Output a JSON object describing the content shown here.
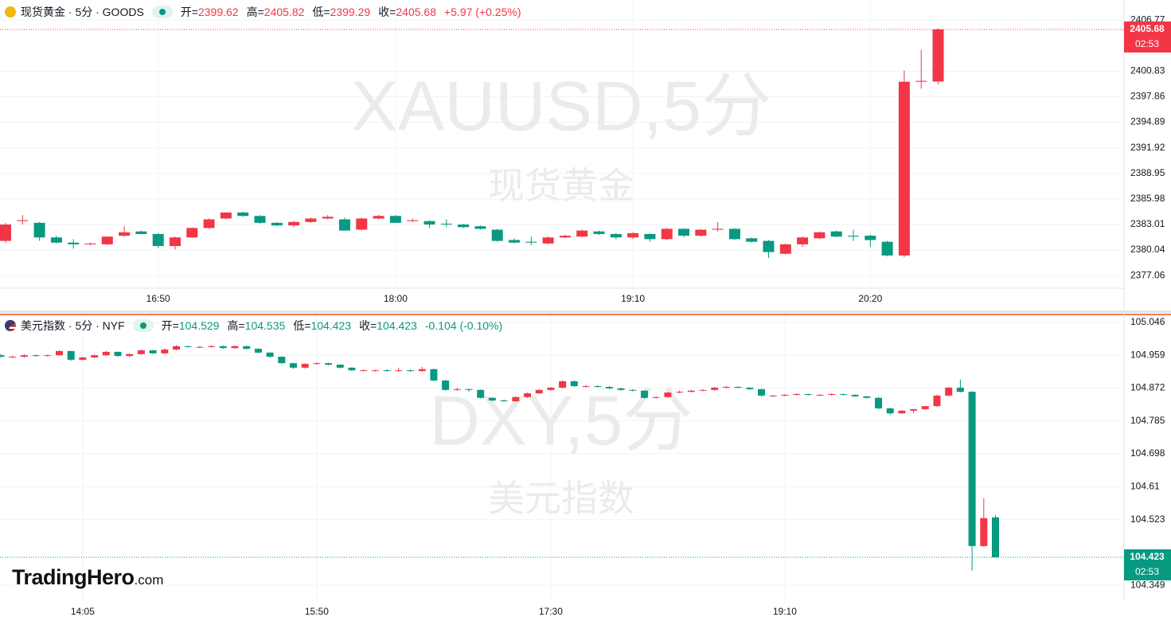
{
  "chart_data": [
    {
      "type": "candlestick",
      "title": "现货黄金 · 5分 · GOODS",
      "header_labels": [
        "开=",
        "高=",
        "低=",
        "收="
      ],
      "change": "+5.97 (+0.25%)",
      "watermark": "XAUUSD,5分",
      "watermark_sub": "现货黄金",
      "countdown": "02:53",
      "up_color": "#f23645",
      "down_color": "#089981",
      "ylim": [
        2375.6,
        2409.1
      ],
      "yticks": [
        2377.06,
        2380.04,
        2383.01,
        2385.98,
        2388.95,
        2391.92,
        2394.89,
        2397.86,
        2400.83,
        2406.77
      ],
      "categories": [
        null,
        null,
        null,
        null,
        null,
        null,
        null,
        null,
        null,
        "16:50",
        null,
        null,
        null,
        null,
        null,
        null,
        null,
        null,
        null,
        null,
        null,
        null,
        null,
        "18:00",
        null,
        null,
        null,
        null,
        null,
        null,
        null,
        null,
        null,
        null,
        null,
        null,
        null,
        "19:10",
        null,
        null,
        null,
        null,
        null,
        null,
        null,
        null,
        null,
        null,
        null,
        null,
        null,
        "20:20",
        null,
        null,
        null,
        null
      ],
      "ohlc": [
        [
          2381.1,
          2383.2,
          2380.9,
          2383.0
        ],
        [
          2383.4,
          2384.1,
          2383.0,
          2383.5
        ],
        [
          2383.2,
          2383.3,
          2381.1,
          2381.5
        ],
        [
          2381.5,
          2381.7,
          2380.8,
          2380.9
        ],
        [
          2380.9,
          2381.3,
          2380.2,
          2380.7
        ],
        [
          2380.7,
          2380.9,
          2380.6,
          2380.8
        ],
        [
          2380.7,
          2381.6,
          2380.6,
          2381.6
        ],
        [
          2381.7,
          2382.8,
          2381.6,
          2382.1
        ],
        [
          2382.2,
          2382.3,
          2381.9,
          2381.9
        ],
        [
          2381.9,
          2382.0,
          2380.3,
          2380.5
        ],
        [
          2380.5,
          2381.6,
          2380.1,
          2381.5
        ],
        [
          2381.5,
          2382.7,
          2381.4,
          2382.6
        ],
        [
          2382.6,
          2383.7,
          2382.5,
          2383.6
        ],
        [
          2383.7,
          2384.4,
          2383.6,
          2384.4
        ],
        [
          2384.4,
          2384.5,
          2383.9,
          2384.0
        ],
        [
          2384.0,
          2384.1,
          2383.1,
          2383.2
        ],
        [
          2383.2,
          2383.3,
          2382.8,
          2382.9
        ],
        [
          2382.9,
          2383.4,
          2382.7,
          2383.3
        ],
        [
          2383.3,
          2383.8,
          2383.2,
          2383.7
        ],
        [
          2383.7,
          2384.1,
          2383.6,
          2383.9
        ],
        [
          2383.6,
          2383.8,
          2382.3,
          2382.3
        ],
        [
          2382.4,
          2383.8,
          2382.3,
          2383.7
        ],
        [
          2383.7,
          2384.1,
          2383.6,
          2384.0
        ],
        [
          2384.0,
          2384.1,
          2383.2,
          2383.2
        ],
        [
          2383.4,
          2383.7,
          2383.3,
          2383.5
        ],
        [
          2383.4,
          2383.5,
          2382.6,
          2383.0
        ],
        [
          2383.1,
          2383.6,
          2382.7,
          2383.0
        ],
        [
          2383.0,
          2383.1,
          2382.6,
          2382.7
        ],
        [
          2382.8,
          2382.9,
          2382.4,
          2382.5
        ],
        [
          2382.4,
          2382.5,
          2381.0,
          2381.1
        ],
        [
          2381.2,
          2381.4,
          2380.8,
          2380.9
        ],
        [
          2381.0,
          2381.6,
          2380.6,
          2380.9
        ],
        [
          2380.8,
          2381.6,
          2380.7,
          2381.5
        ],
        [
          2381.5,
          2381.8,
          2381.4,
          2381.7
        ],
        [
          2381.6,
          2382.4,
          2381.5,
          2382.3
        ],
        [
          2382.2,
          2382.3,
          2381.8,
          2381.9
        ],
        [
          2381.9,
          2382.0,
          2381.3,
          2381.5
        ],
        [
          2381.5,
          2382.1,
          2381.3,
          2382.0
        ],
        [
          2381.9,
          2382.0,
          2381.0,
          2381.3
        ],
        [
          2381.3,
          2382.6,
          2381.2,
          2382.5
        ],
        [
          2382.5,
          2382.6,
          2381.5,
          2381.7
        ],
        [
          2381.7,
          2382.5,
          2381.6,
          2382.4
        ],
        [
          2382.4,
          2383.3,
          2382.2,
          2382.5
        ],
        [
          2382.5,
          2382.6,
          2381.2,
          2381.3
        ],
        [
          2381.4,
          2381.5,
          2380.9,
          2381.0
        ],
        [
          2381.1,
          2381.2,
          2379.1,
          2379.8
        ],
        [
          2379.6,
          2380.8,
          2379.5,
          2380.7
        ],
        [
          2380.7,
          2381.6,
          2380.4,
          2381.5
        ],
        [
          2381.4,
          2382.2,
          2381.3,
          2382.1
        ],
        [
          2382.2,
          2382.3,
          2381.5,
          2381.6
        ],
        [
          2381.7,
          2382.4,
          2381.1,
          2381.6
        ],
        [
          2381.7,
          2381.8,
          2380.4,
          2381.2
        ],
        [
          2381.0,
          2381.1,
          2379.3,
          2379.4
        ],
        [
          2379.4,
          2400.9,
          2379.2,
          2399.6
        ],
        [
          2399.6,
          2403.3,
          2398.8,
          2399.7
        ],
        [
          2399.62,
          2405.82,
          2399.29,
          2405.68
        ]
      ]
    },
    {
      "type": "candlestick",
      "title": "美元指数 · 5分 · NYF",
      "header_labels": [
        "开=",
        "高=",
        "低=",
        "收="
      ],
      "change": "-0.104 (-0.10%)",
      "watermark": "DXY,5分",
      "watermark_sub": "美元指数",
      "countdown": "02:53",
      "up_color": "#f23645",
      "down_color": "#089981",
      "ylim": [
        104.307,
        105.065
      ],
      "yticks": [
        104.349,
        104.523,
        104.61,
        104.698,
        104.785,
        104.872,
        104.959,
        105.046
      ],
      "categories": [
        null,
        null,
        null,
        null,
        null,
        null,
        null,
        "14:05",
        null,
        null,
        null,
        null,
        null,
        null,
        null,
        null,
        null,
        null,
        null,
        null,
        null,
        null,
        null,
        null,
        null,
        null,
        null,
        "15:50",
        null,
        null,
        null,
        null,
        null,
        null,
        null,
        null,
        null,
        null,
        null,
        null,
        null,
        null,
        null,
        null,
        null,
        null,
        null,
        "17:30",
        null,
        null,
        null,
        null,
        null,
        null,
        null,
        null,
        null,
        null,
        null,
        null,
        null,
        null,
        null,
        null,
        null,
        null,
        null,
        "19:10",
        null,
        null,
        null,
        null,
        null,
        null,
        null,
        null,
        null,
        null,
        null,
        null,
        null,
        null,
        null,
        null,
        null,
        null
      ],
      "ohlc": [
        [
          104.959,
          104.962,
          104.953,
          104.955
        ],
        [
          104.955,
          104.958,
          104.952,
          104.955
        ],
        [
          104.955,
          104.962,
          104.953,
          104.959
        ],
        [
          104.959,
          104.961,
          104.955,
          104.957
        ],
        [
          104.957,
          104.961,
          104.955,
          104.959
        ],
        [
          104.959,
          104.972,
          104.958,
          104.97
        ],
        [
          104.97,
          104.971,
          104.944,
          104.947
        ],
        [
          104.947,
          104.955,
          104.945,
          104.953
        ],
        [
          104.953,
          104.961,
          104.951,
          104.959
        ],
        [
          104.959,
          104.97,
          104.957,
          104.968
        ],
        [
          104.968,
          104.969,
          104.955,
          104.957
        ],
        [
          104.957,
          104.964,
          104.954,
          104.962
        ],
        [
          104.962,
          104.974,
          104.96,
          104.972
        ],
        [
          104.972,
          104.973,
          104.962,
          104.964
        ],
        [
          104.964,
          104.977,
          104.962,
          104.974
        ],
        [
          104.974,
          104.986,
          104.972,
          104.983
        ],
        [
          104.983,
          104.985,
          104.979,
          104.981
        ],
        [
          104.981,
          104.984,
          104.978,
          104.981
        ],
        [
          104.981,
          104.986,
          104.979,
          104.983
        ],
        [
          104.983,
          104.985,
          104.976,
          104.978
        ],
        [
          104.978,
          104.985,
          104.976,
          104.983
        ],
        [
          104.983,
          104.984,
          104.974,
          104.976
        ],
        [
          104.976,
          104.977,
          104.964,
          104.966
        ],
        [
          104.966,
          104.967,
          104.953,
          104.955
        ],
        [
          104.955,
          104.956,
          104.936,
          104.938
        ],
        [
          104.938,
          104.939,
          104.923,
          104.926
        ],
        [
          104.926,
          104.938,
          104.924,
          104.936
        ],
        [
          104.936,
          104.94,
          104.934,
          104.938
        ],
        [
          104.938,
          104.939,
          104.932,
          104.934
        ],
        [
          104.934,
          104.935,
          104.924,
          104.926
        ],
        [
          104.926,
          104.927,
          104.917,
          104.919
        ],
        [
          104.919,
          104.922,
          104.917,
          104.919
        ],
        [
          104.919,
          104.921,
          104.916,
          104.919
        ],
        [
          104.919,
          104.922,
          104.915,
          104.917
        ],
        [
          104.917,
          104.926,
          104.915,
          104.919
        ],
        [
          104.919,
          104.921,
          104.915,
          104.917
        ],
        [
          104.917,
          104.928,
          104.915,
          104.922
        ],
        [
          104.922,
          104.924,
          104.89,
          104.892
        ],
        [
          104.892,
          104.894,
          104.865,
          104.867
        ],
        [
          104.867,
          104.873,
          104.865,
          104.869
        ],
        [
          104.869,
          104.871,
          104.862,
          104.867
        ],
        [
          104.867,
          104.868,
          104.844,
          104.846
        ],
        [
          104.846,
          104.848,
          104.837,
          104.839
        ],
        [
          104.839,
          104.842,
          104.835,
          104.837
        ],
        [
          104.837,
          104.85,
          104.835,
          104.848
        ],
        [
          104.848,
          104.86,
          104.846,
          104.858
        ],
        [
          104.858,
          104.869,
          104.856,
          104.867
        ],
        [
          104.867,
          104.875,
          104.865,
          104.873
        ],
        [
          104.873,
          104.892,
          104.871,
          104.89
        ],
        [
          104.89,
          104.892,
          104.875,
          104.877
        ],
        [
          104.877,
          104.88,
          104.874,
          104.877
        ],
        [
          104.877,
          104.879,
          104.873,
          104.875
        ],
        [
          104.875,
          104.877,
          104.869,
          104.871
        ],
        [
          104.871,
          104.873,
          104.865,
          104.867
        ],
        [
          104.867,
          104.869,
          104.863,
          104.865
        ],
        [
          104.865,
          104.866,
          104.844,
          104.846
        ],
        [
          104.846,
          104.85,
          104.844,
          104.848
        ],
        [
          104.848,
          104.862,
          104.846,
          104.86
        ],
        [
          104.86,
          104.865,
          104.858,
          104.862
        ],
        [
          104.862,
          104.867,
          104.86,
          104.865
        ],
        [
          104.865,
          104.869,
          104.863,
          104.867
        ],
        [
          104.867,
          104.875,
          104.865,
          104.873
        ],
        [
          104.873,
          104.877,
          104.871,
          104.875
        ],
        [
          104.875,
          104.876,
          104.871,
          104.873
        ],
        [
          104.873,
          104.874,
          104.867,
          104.869
        ],
        [
          104.869,
          104.87,
          104.85,
          104.852
        ],
        [
          104.852,
          104.854,
          104.85,
          104.852
        ],
        [
          104.852,
          104.856,
          104.85,
          104.854
        ],
        [
          104.854,
          104.858,
          104.852,
          104.856
        ],
        [
          104.856,
          104.857,
          104.852,
          104.854
        ],
        [
          104.854,
          104.856,
          104.852,
          104.854
        ],
        [
          104.854,
          104.858,
          104.852,
          104.856
        ],
        [
          104.856,
          104.857,
          104.852,
          104.854
        ],
        [
          104.854,
          104.855,
          104.848,
          104.85
        ],
        [
          104.85,
          104.851,
          104.844,
          104.846
        ],
        [
          104.846,
          104.848,
          104.816,
          104.818
        ],
        [
          104.818,
          104.82,
          104.8,
          104.805
        ],
        [
          104.805,
          104.813,
          104.803,
          104.812
        ],
        [
          104.812,
          104.817,
          104.805,
          104.816
        ],
        [
          104.816,
          104.825,
          104.814,
          104.824
        ],
        [
          104.824,
          104.854,
          104.822,
          104.852
        ],
        [
          104.852,
          104.875,
          104.85,
          104.873
        ],
        [
          104.873,
          104.895,
          104.86,
          104.862
        ],
        [
          104.862,
          104.864,
          104.388,
          104.453
        ],
        [
          104.453,
          104.58,
          104.451,
          104.527
        ],
        [
          104.529,
          104.535,
          104.423,
          104.423
        ]
      ]
    }
  ],
  "brand_name": "TradingHero",
  "brand_domain": ".com"
}
